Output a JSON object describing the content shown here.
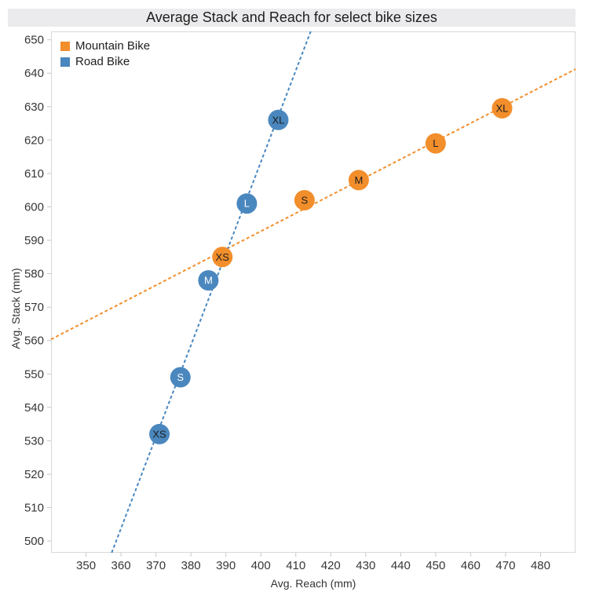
{
  "chart_data": {
    "type": "scatter",
    "title": "Average Stack and Reach for select bike sizes",
    "xlabel": "Avg. Reach (mm)",
    "ylabel": "Avg. Stack (mm)",
    "xlim": [
      340,
      490
    ],
    "ylim": [
      496.5,
      652.5
    ],
    "x_ticks": [
      350,
      360,
      370,
      380,
      390,
      400,
      410,
      420,
      430,
      440,
      450,
      460,
      470,
      480
    ],
    "y_ticks": [
      500,
      510,
      520,
      530,
      540,
      550,
      560,
      570,
      580,
      590,
      600,
      610,
      620,
      630,
      640,
      650
    ],
    "grid": false,
    "legend_position": "top-left",
    "marker_radius": 13,
    "colors": {
      "plot_border": "#d8d8d8",
      "tick_mark": "#c8c8c8",
      "tick_label": "#363636",
      "title_band_bg": "#ebebed"
    },
    "series": [
      {
        "name": "Mountain Bike",
        "color": "#f28e2b",
        "trend": {
          "style": "dashed",
          "slope": 0.539,
          "intercept": 377.1
        },
        "points": [
          {
            "label": "XS",
            "x": 389,
            "y": 585,
            "label_color": "#1e1e1e"
          },
          {
            "label": "S",
            "x": 412.5,
            "y": 602,
            "label_color": "#1e1e1e"
          },
          {
            "label": "M",
            "x": 428,
            "y": 608,
            "label_color": "#1e1e1e"
          },
          {
            "label": "L",
            "x": 450,
            "y": 619,
            "label_color": "#1e1e1e"
          },
          {
            "label": "XL",
            "x": 469,
            "y": 629.5,
            "label_color": "#1e1e1e"
          }
        ]
      },
      {
        "name": "Road Bike",
        "color": "#4a87be",
        "trend": {
          "style": "dashed",
          "slope": 2.741,
          "intercept": -483
        },
        "points": [
          {
            "label": "XS",
            "x": 371,
            "y": 532,
            "label_color": "#1e1e1e"
          },
          {
            "label": "S",
            "x": 377,
            "y": 549,
            "label_color": "#ffffff"
          },
          {
            "label": "M",
            "x": 385,
            "y": 578,
            "label_color": "#ffffff"
          },
          {
            "label": "L",
            "x": 396,
            "y": 601,
            "label_color": "#ffffff"
          },
          {
            "label": "XL",
            "x": 405,
            "y": 626,
            "label_color": "#1e1e1e"
          }
        ]
      }
    ]
  }
}
